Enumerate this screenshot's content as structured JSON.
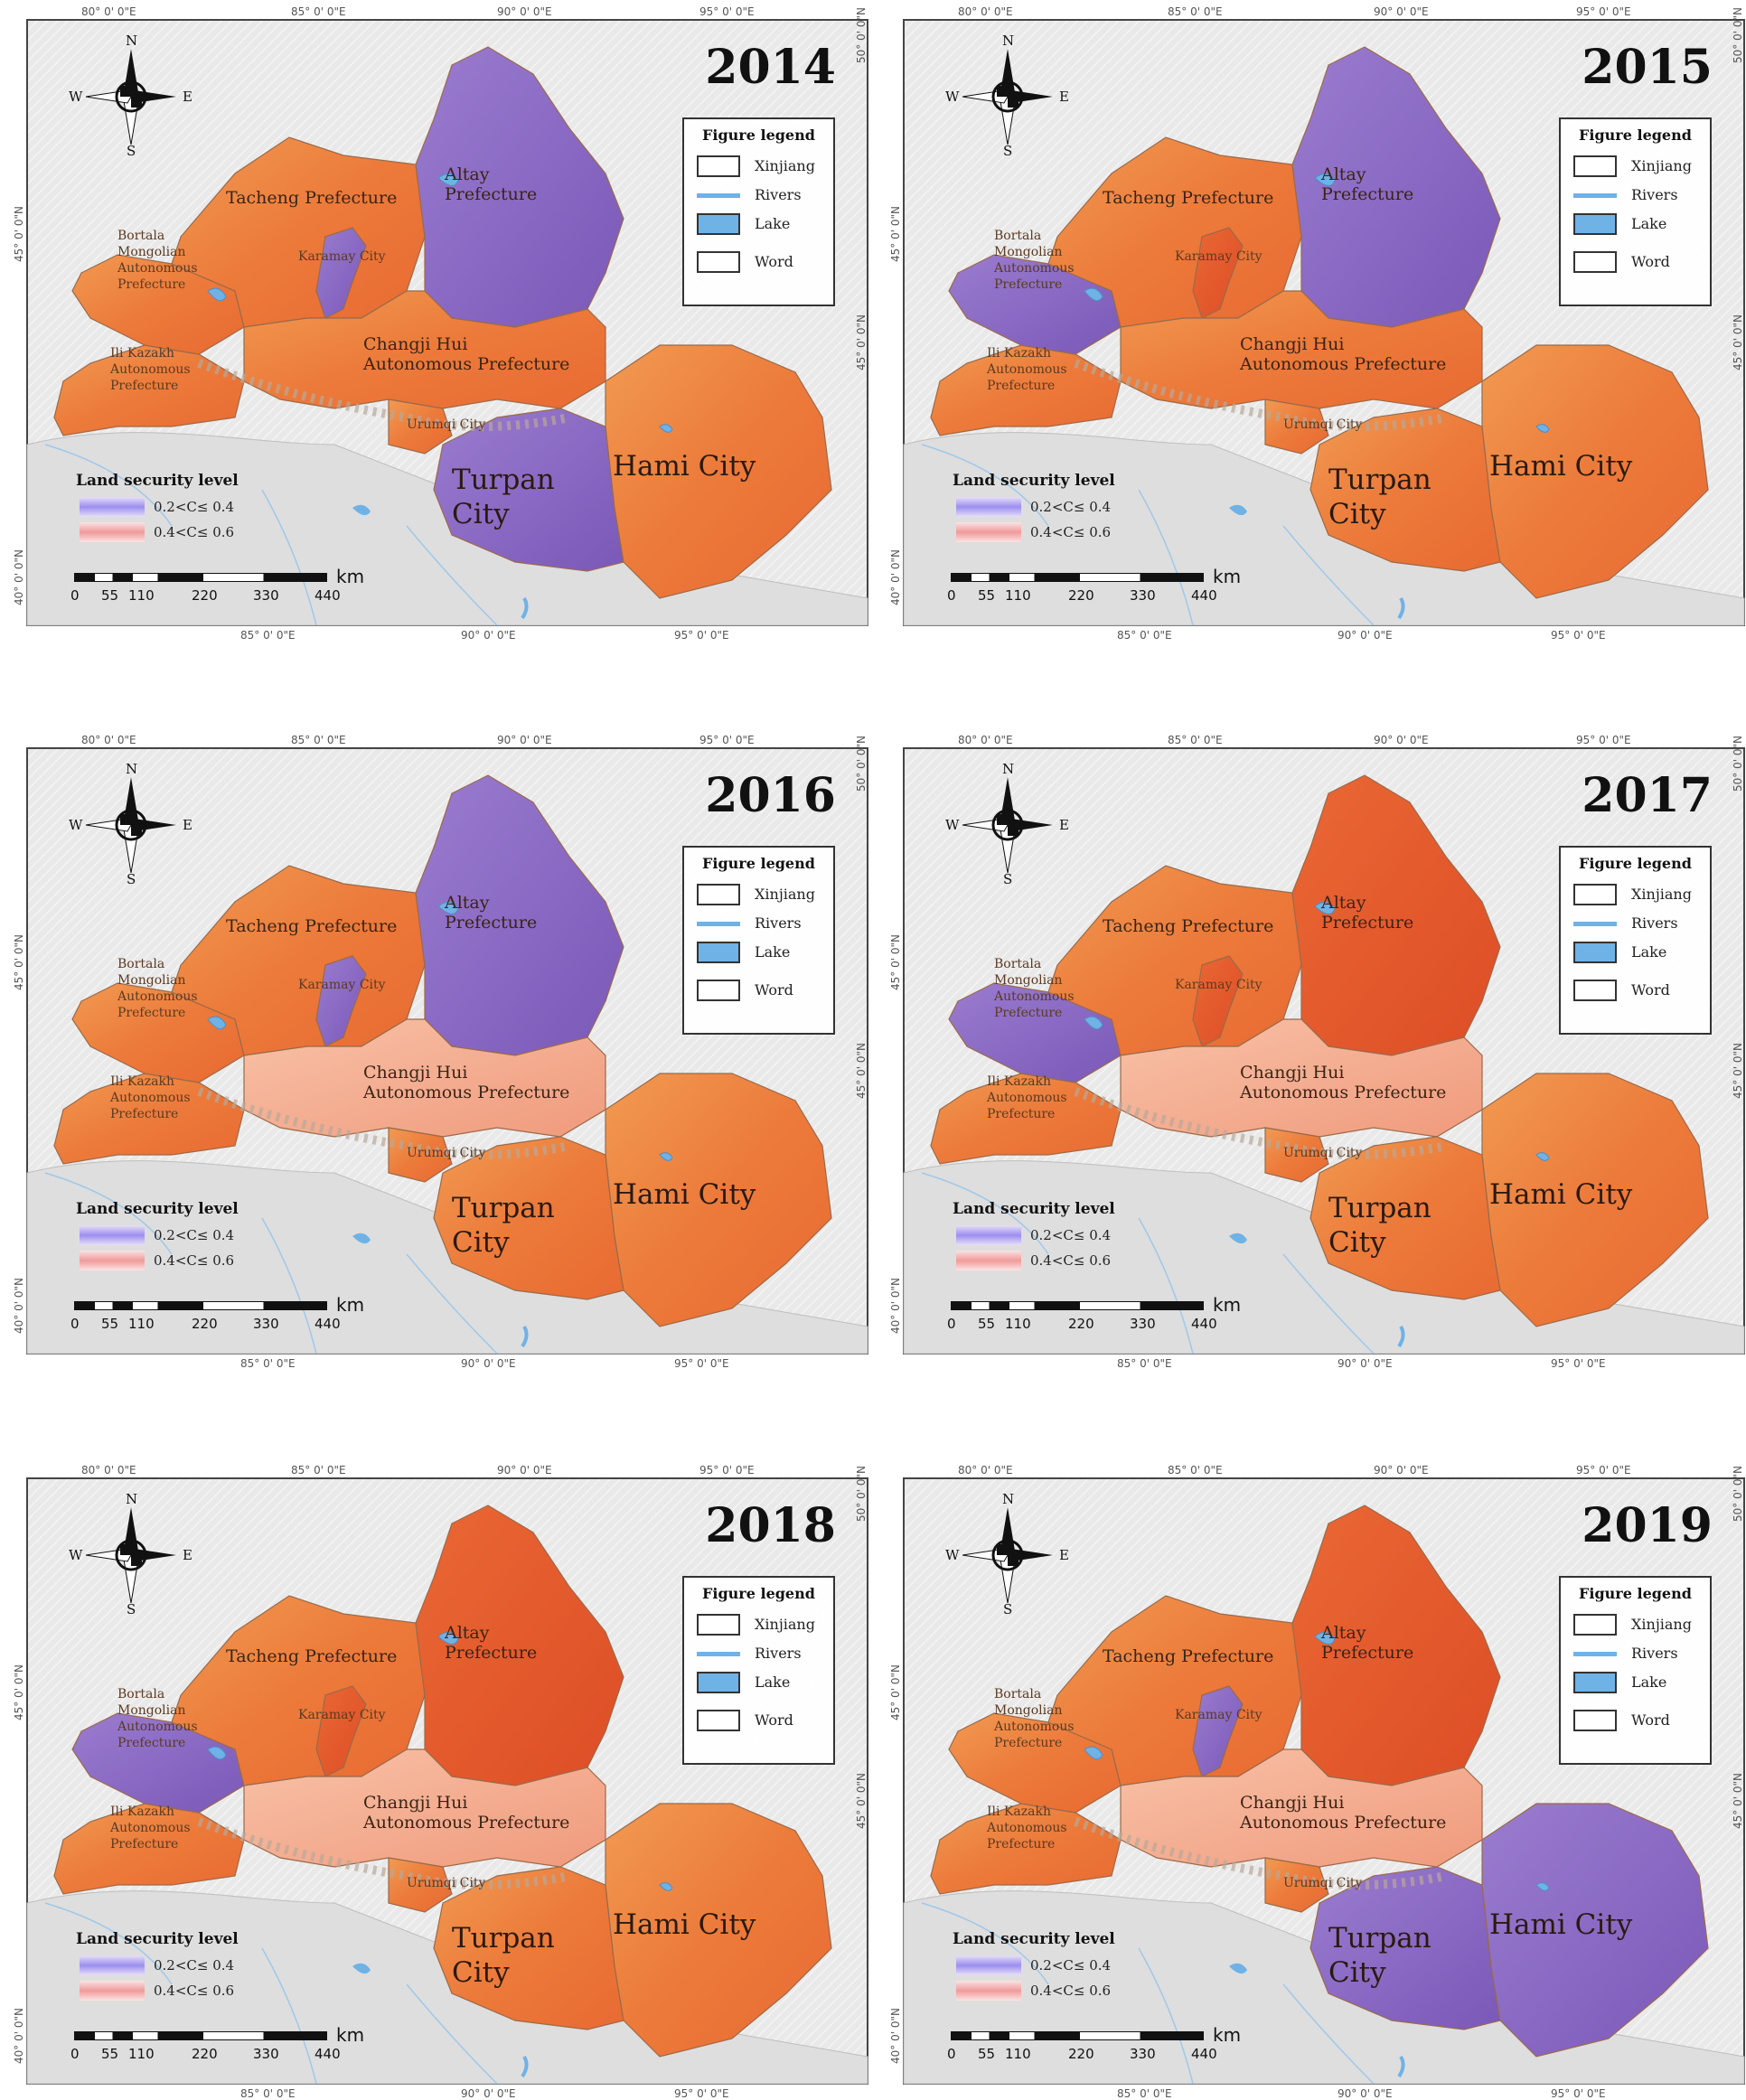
{
  "coords": {
    "top": [
      "80° 0' 0\"E",
      "85° 0' 0\"E",
      "90° 0' 0\"E",
      "95° 0' 0\"E"
    ],
    "bottom": [
      "85° 0' 0\"E",
      "90° 0' 0\"E",
      "95° 0' 0\"E"
    ],
    "left": [
      "45° 0' 0\"N",
      "40° 0' 0\"N"
    ],
    "right": [
      "50° 0' 0\"N",
      "45° 0' 0\"N"
    ]
  },
  "compass": {
    "n": "N",
    "s": "S",
    "e": "E",
    "w": "W"
  },
  "legend": {
    "title": "Figure legend",
    "items": [
      "Xinjiang",
      "Rivers",
      "Lake",
      "Word"
    ]
  },
  "security": {
    "title": "Land security level",
    "items": [
      "0.2<C≤ 0.4",
      "0.4<C≤ 0.6"
    ],
    "colors": [
      "#9c8ef0",
      "#f09a9a"
    ]
  },
  "scale": {
    "unit": "km",
    "ticks": [
      "0",
      "55",
      "110",
      "220",
      "330",
      "440"
    ]
  },
  "labels": {
    "altay": "Altay Prefecture",
    "tacheng": "Tacheng Prefecture",
    "bortala": "Bortala Mongolian Autonomous Prefecture",
    "karamay": "Karamay City",
    "changji": "Changji Hui Autonomous Prefecture",
    "ili": "Ili Kazakh Autonomous Prefecture",
    "urumqi": "Urumqi City",
    "turpan": "Turpan City",
    "hami": "Hami City"
  },
  "palette": {
    "orange": "#ee7a38",
    "dark_orange": "#e45a2c",
    "purple": "#8a6bc4",
    "light_pink": "#f6b39a",
    "lake": "#6fb2e6",
    "background": "#dcdcdc"
  },
  "panels": [
    {
      "year": "2014",
      "purple": [
        "altay",
        "turpan",
        "karamay"
      ]
    },
    {
      "year": "2015",
      "purple": [
        "altay",
        "bortala"
      ]
    },
    {
      "year": "2016",
      "purple": [
        "altay",
        "karamay"
      ]
    },
    {
      "year": "2017",
      "purple": [
        "bortala"
      ]
    },
    {
      "year": "2018",
      "purple": [
        "bortala"
      ]
    },
    {
      "year": "2019",
      "purple": [
        "turpan",
        "hami",
        "karamay"
      ]
    }
  ]
}
